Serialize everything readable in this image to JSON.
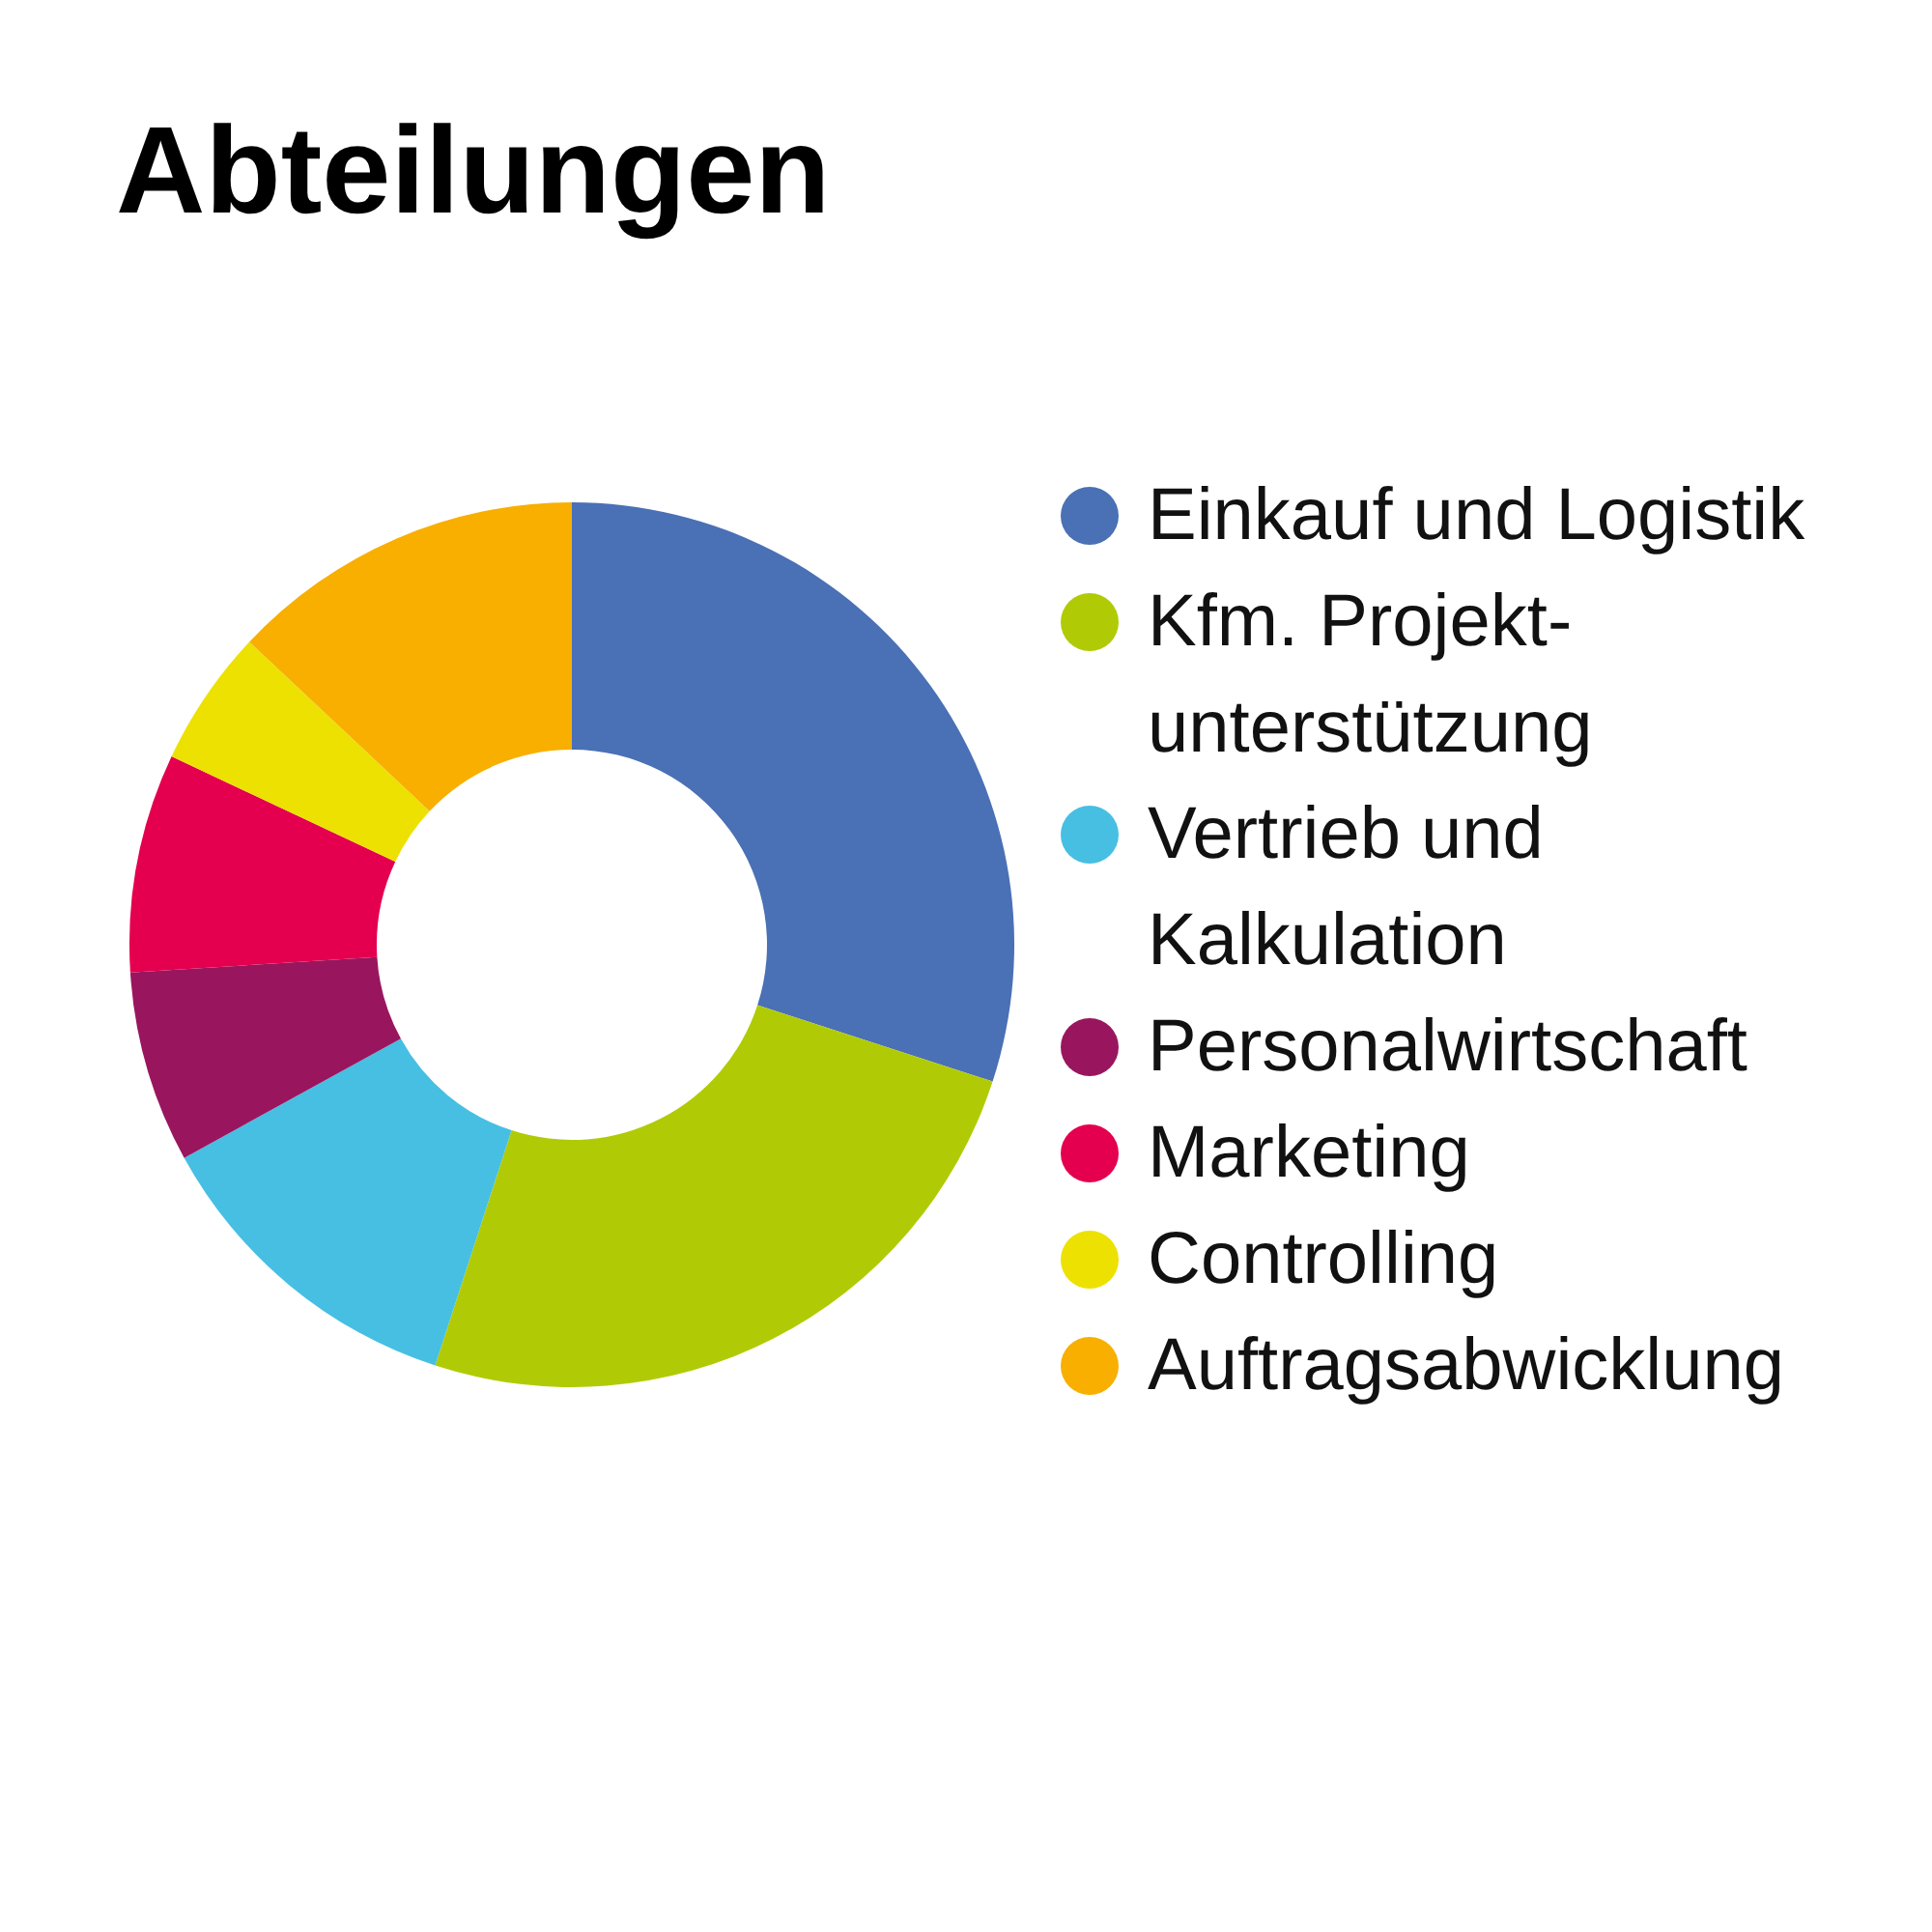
{
  "chart_data": {
    "type": "donut",
    "title": "Abteilungen",
    "categories": [
      "Einkauf und Logistik",
      "Kfm. Projekt-unterstützung",
      "Vertrieb und Kalkulation",
      "Personalwirtschaft",
      "Marketing",
      "Controlling",
      "Auftragsabwicklung"
    ],
    "values": [
      30,
      25,
      12,
      7,
      8,
      5,
      13
    ],
    "colors": [
      "#4a70b5",
      "#b0cb05",
      "#46bfe3",
      "#99165f",
      "#e4004f",
      "#ece100",
      "#f8af00"
    ],
    "legend": "right"
  }
}
